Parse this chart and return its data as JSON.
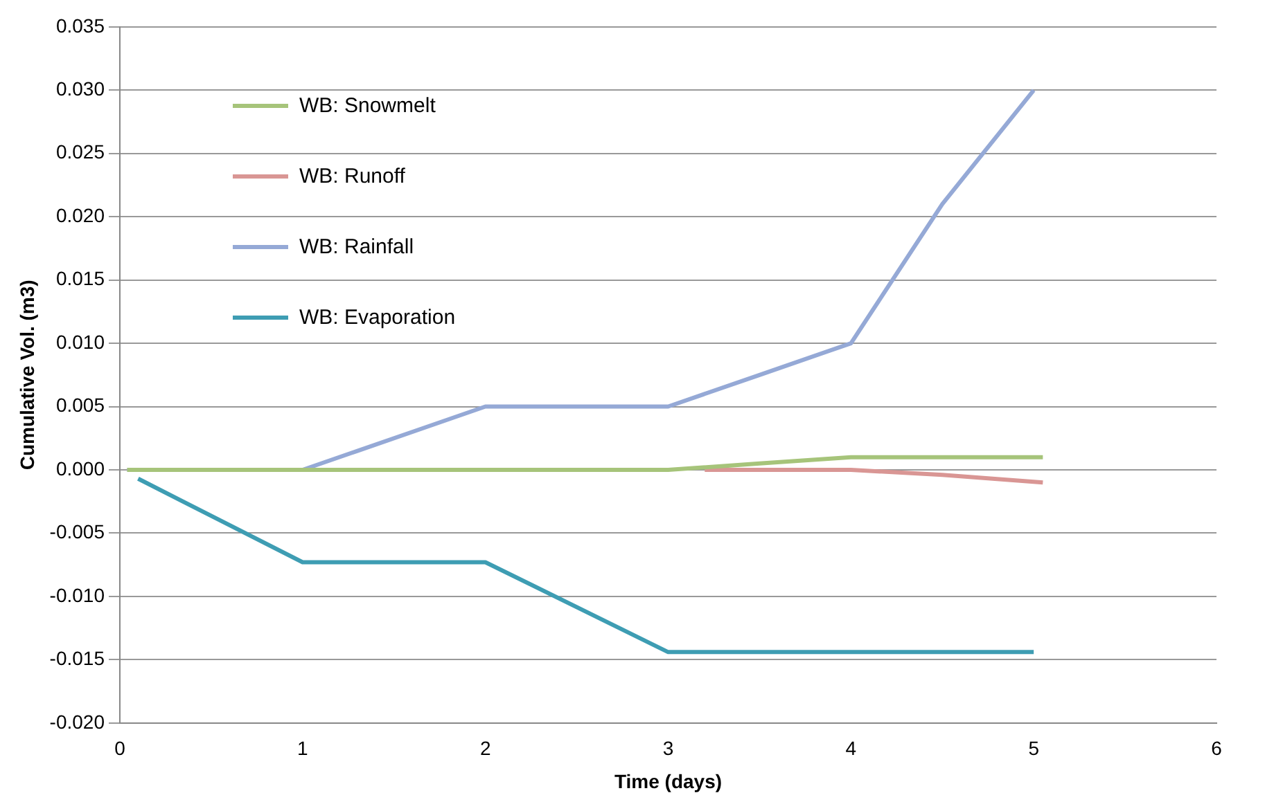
{
  "chart_data": {
    "type": "line",
    "xlabel": "Time (days)",
    "ylabel": "Cumulative Vol. (m3)",
    "xlim": [
      0,
      6
    ],
    "xticks": [
      0,
      1,
      2,
      3,
      4,
      5,
      6
    ],
    "ylim": [
      -0.02,
      0.035
    ],
    "yticks": [
      {
        "value": -0.02,
        "label": "-0.020"
      },
      {
        "value": -0.015,
        "label": "-0.015"
      },
      {
        "value": -0.01,
        "label": "-0.010"
      },
      {
        "value": -0.005,
        "label": "-0.005"
      },
      {
        "value": 0,
        "label": "0.000"
      },
      {
        "value": 0.005,
        "label": "0.005"
      },
      {
        "value": 0.01,
        "label": "0.010"
      },
      {
        "value": 0.015,
        "label": "0.015"
      },
      {
        "value": 0.02,
        "label": "0.020"
      },
      {
        "value": 0.025,
        "label": "0.025"
      },
      {
        "value": 0.03,
        "label": "0.030"
      },
      {
        "value": 0.035,
        "label": "0.035"
      }
    ],
    "grid": "y",
    "legend": "top left",
    "marker": "none",
    "line_style": "solid",
    "series": [
      {
        "name": "WB: Snowmelt",
        "color": "#a6c47a",
        "x": [
          0.04,
          1,
          2,
          3,
          3.5,
          4,
          5.05
        ],
        "values": [
          0,
          0,
          0,
          0,
          0.0005,
          0.001,
          0.001
        ]
      },
      {
        "name": "WB: Runoff",
        "color": "#d99694",
        "x": [
          3.2,
          4,
          4.5,
          5.05
        ],
        "values": [
          0,
          0,
          -0.0004,
          -0.001
        ]
      },
      {
        "name": "WB: Rainfall",
        "color": "#95a9d6",
        "x": [
          0.04,
          1,
          1.3,
          1.7,
          2,
          3,
          3.5,
          4,
          4.5,
          5
        ],
        "values": [
          0,
          0,
          0.0015,
          0.0035,
          0.005,
          0.005,
          0.0075,
          0.01,
          0.021,
          0.03
        ]
      },
      {
        "name": "WB: Evaporation",
        "color": "#3e9db3",
        "x": [
          0.1,
          1,
          2,
          3,
          4,
          5
        ],
        "values": [
          -0.0007,
          -0.0073,
          -0.0073,
          -0.0144,
          -0.0144,
          -0.0144
        ]
      }
    ]
  }
}
